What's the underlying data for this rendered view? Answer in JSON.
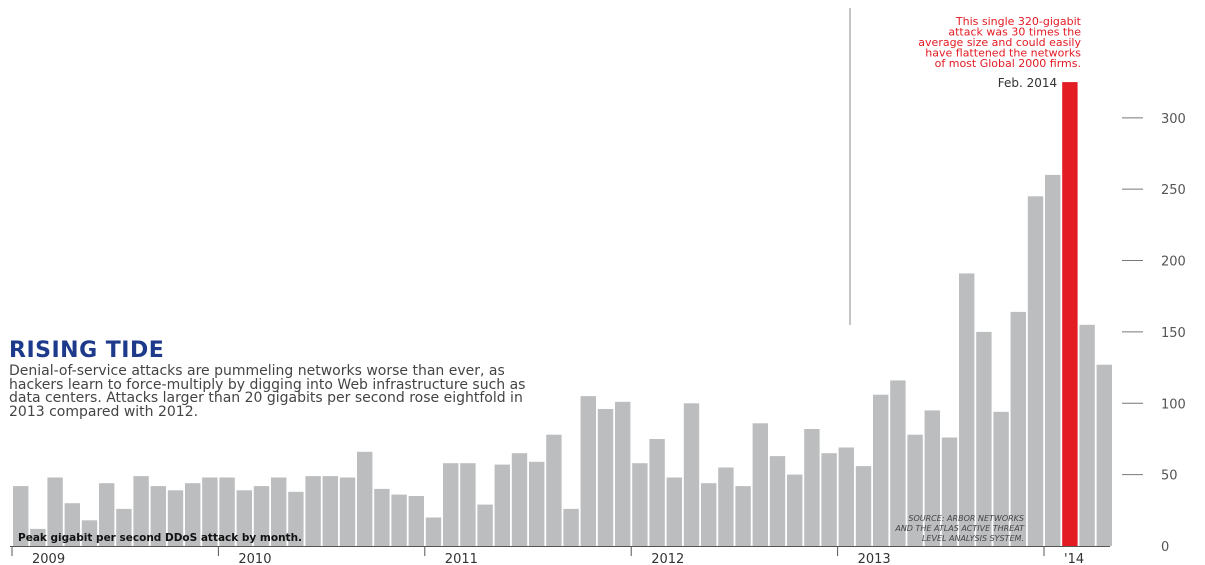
{
  "title": "RISING TIDE",
  "description": "Denial-of-service attacks are pummeling networks worse than ever, as hackers learn to force-multiply by digging into Web infrastructure such as data centers. Attacks larger than 20 gigabits per second rose eightfold in 2013 compared with 2012.",
  "caption": "Peak gigabit per second DDoS attack by month.",
  "source": [
    "SOURCE: ARBOR NETWORKS",
    "AND THE ATLAS ACTIVE THREAT",
    "LEVEL ANALYSIS SYSTEM."
  ],
  "highlight_color": "#e31b23",
  "bar_color": "#bcbdbf",
  "chart_data": {
    "type": "bar",
    "ylim": [
      0,
      330
    ],
    "yticks": [
      0,
      50,
      100,
      150,
      200,
      250,
      300
    ],
    "years": [
      "2009",
      "2010",
      "2011",
      "2012",
      "2013",
      "'14"
    ],
    "values": [
      42,
      12,
      48,
      30,
      18,
      44,
      26,
      49,
      42,
      39,
      44,
      48,
      48,
      39,
      42,
      48,
      38,
      49,
      49,
      48,
      66,
      40,
      36,
      35,
      20,
      58,
      58,
      29,
      57,
      65,
      59,
      78,
      26,
      105,
      96,
      101,
      58,
      75,
      48,
      100,
      44,
      55,
      42,
      86,
      63,
      50,
      82,
      65,
      69,
      56,
      106,
      116,
      78,
      95,
      76,
      191,
      150,
      94,
      164,
      245,
      260,
      325,
      155,
      127
    ],
    "highlight_index": 61,
    "highlight_label": "Feb. 2014",
    "annotation": [
      "This single 320-gigabit",
      "attack was 30 times the",
      "average size and could easily",
      "have flattened the networks",
      "of most Global 2000 firms."
    ]
  }
}
